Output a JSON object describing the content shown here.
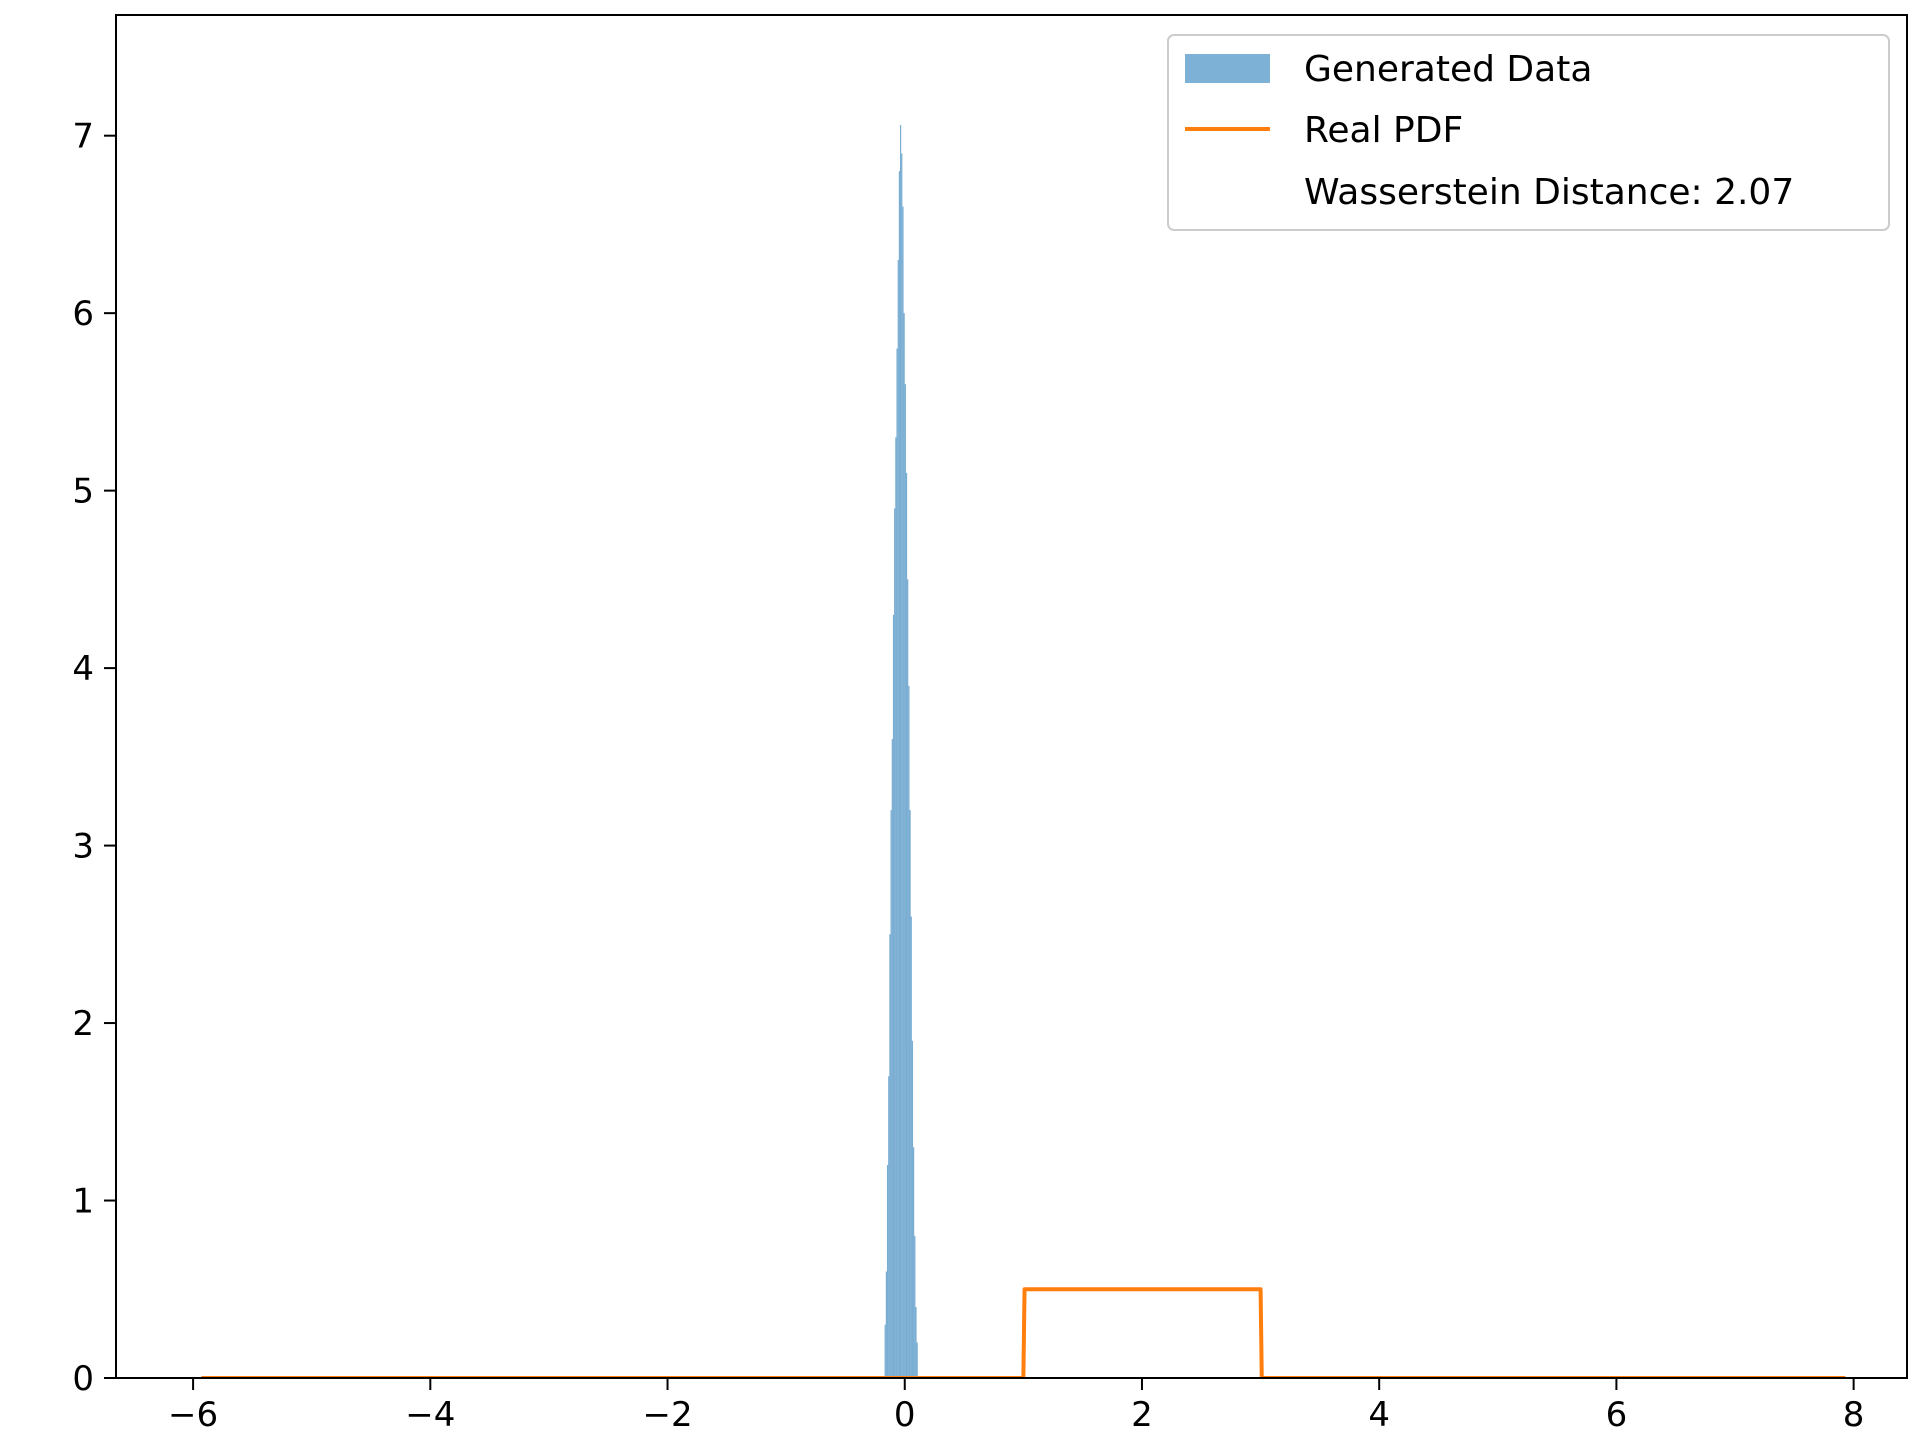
{
  "chart_data": {
    "type": "bar",
    "title": "",
    "xlabel": "",
    "ylabel": "",
    "xlim": [
      -6.65,
      8.45
    ],
    "ylim": [
      0,
      7.68
    ],
    "xticks": [
      -6,
      -4,
      -2,
      0,
      2,
      4,
      6,
      8
    ],
    "xtick_labels": [
      "−6",
      "−4",
      "−2",
      "0",
      "2",
      "4",
      "6",
      "8"
    ],
    "yticks": [
      0,
      1,
      2,
      3,
      4,
      5,
      6,
      7
    ],
    "ytick_labels": [
      "0",
      "1",
      "2",
      "3",
      "4",
      "5",
      "6",
      "7"
    ],
    "grid": false,
    "legend_position": "top-right",
    "series": [
      {
        "name": "Generated Data",
        "kind": "histogram",
        "color": "#1f77b4",
        "opacity": 0.6,
        "bin_width": 0.01,
        "bins": [
          [
            -0.17,
            0.3
          ],
          [
            -0.16,
            0.6
          ],
          [
            -0.15,
            1.2
          ],
          [
            -0.14,
            1.7
          ],
          [
            -0.13,
            2.5
          ],
          [
            -0.12,
            3.2
          ],
          [
            -0.11,
            3.6
          ],
          [
            -0.1,
            4.3
          ],
          [
            -0.09,
            4.9
          ],
          [
            -0.08,
            5.3
          ],
          [
            -0.07,
            5.8
          ],
          [
            -0.06,
            6.3
          ],
          [
            -0.05,
            6.8
          ],
          [
            -0.04,
            7.06
          ],
          [
            -0.03,
            6.9
          ],
          [
            -0.02,
            6.6
          ],
          [
            -0.01,
            6.0
          ],
          [
            0.0,
            5.6
          ],
          [
            0.01,
            5.1
          ],
          [
            0.02,
            4.5
          ],
          [
            0.03,
            3.9
          ],
          [
            0.04,
            3.2
          ],
          [
            0.05,
            2.6
          ],
          [
            0.06,
            1.9
          ],
          [
            0.07,
            1.3
          ],
          [
            0.08,
            0.8
          ],
          [
            0.09,
            0.4
          ],
          [
            0.1,
            0.2
          ]
        ]
      },
      {
        "name": "Real PDF",
        "kind": "line",
        "color": "#ff7f0e",
        "points": [
          [
            -5.93,
            0
          ],
          [
            1.0,
            0
          ],
          [
            1.01,
            0.5
          ],
          [
            3.0,
            0.5
          ],
          [
            3.01,
            0
          ],
          [
            7.93,
            0
          ]
        ]
      }
    ],
    "legend": [
      {
        "label": "Generated Data",
        "marker": "patch",
        "color": "#7eb1d6"
      },
      {
        "label": "Real PDF",
        "marker": "line",
        "color": "#ff7f0e"
      },
      {
        "label": "Wasserstein Distance: 2.07",
        "marker": "none"
      }
    ]
  }
}
